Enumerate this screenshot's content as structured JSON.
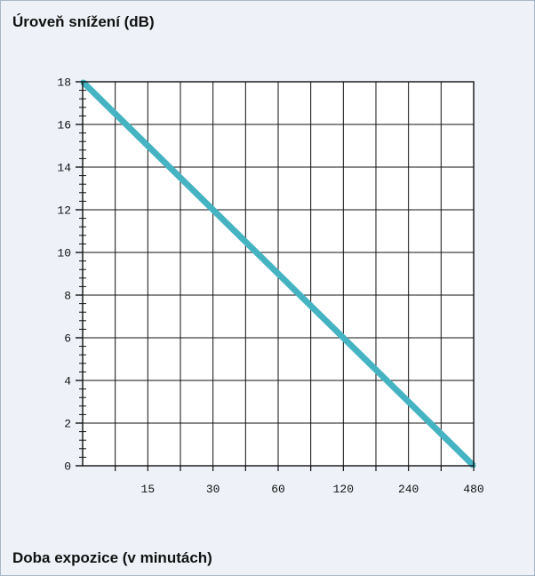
{
  "chart_data": {
    "type": "line",
    "title": "Úroveň snížení (dB)",
    "xlabel": "Doba expozice (v minutách)",
    "ylabel": "",
    "x_scale": "log2",
    "x_ticks": [
      15,
      30,
      60,
      120,
      240,
      480
    ],
    "x_tick_labels": [
      "15",
      "30",
      "60",
      "120",
      "240",
      "480"
    ],
    "xlim": [
      7.5,
      480
    ],
    "ylim": [
      0,
      18
    ],
    "y_ticks": [
      0,
      2,
      4,
      6,
      8,
      10,
      12,
      14,
      16,
      18
    ],
    "y_tick_labels": [
      "0",
      "2",
      "4",
      "6",
      "8",
      "10",
      "12",
      "14",
      "16",
      "18"
    ],
    "grid": true,
    "series": [
      {
        "color": "#46b3c3",
        "x": [
          7.5,
          15,
          30,
          60,
          120,
          240,
          480
        ],
        "y": [
          18,
          15,
          12,
          9,
          6,
          3,
          0
        ]
      }
    ]
  }
}
